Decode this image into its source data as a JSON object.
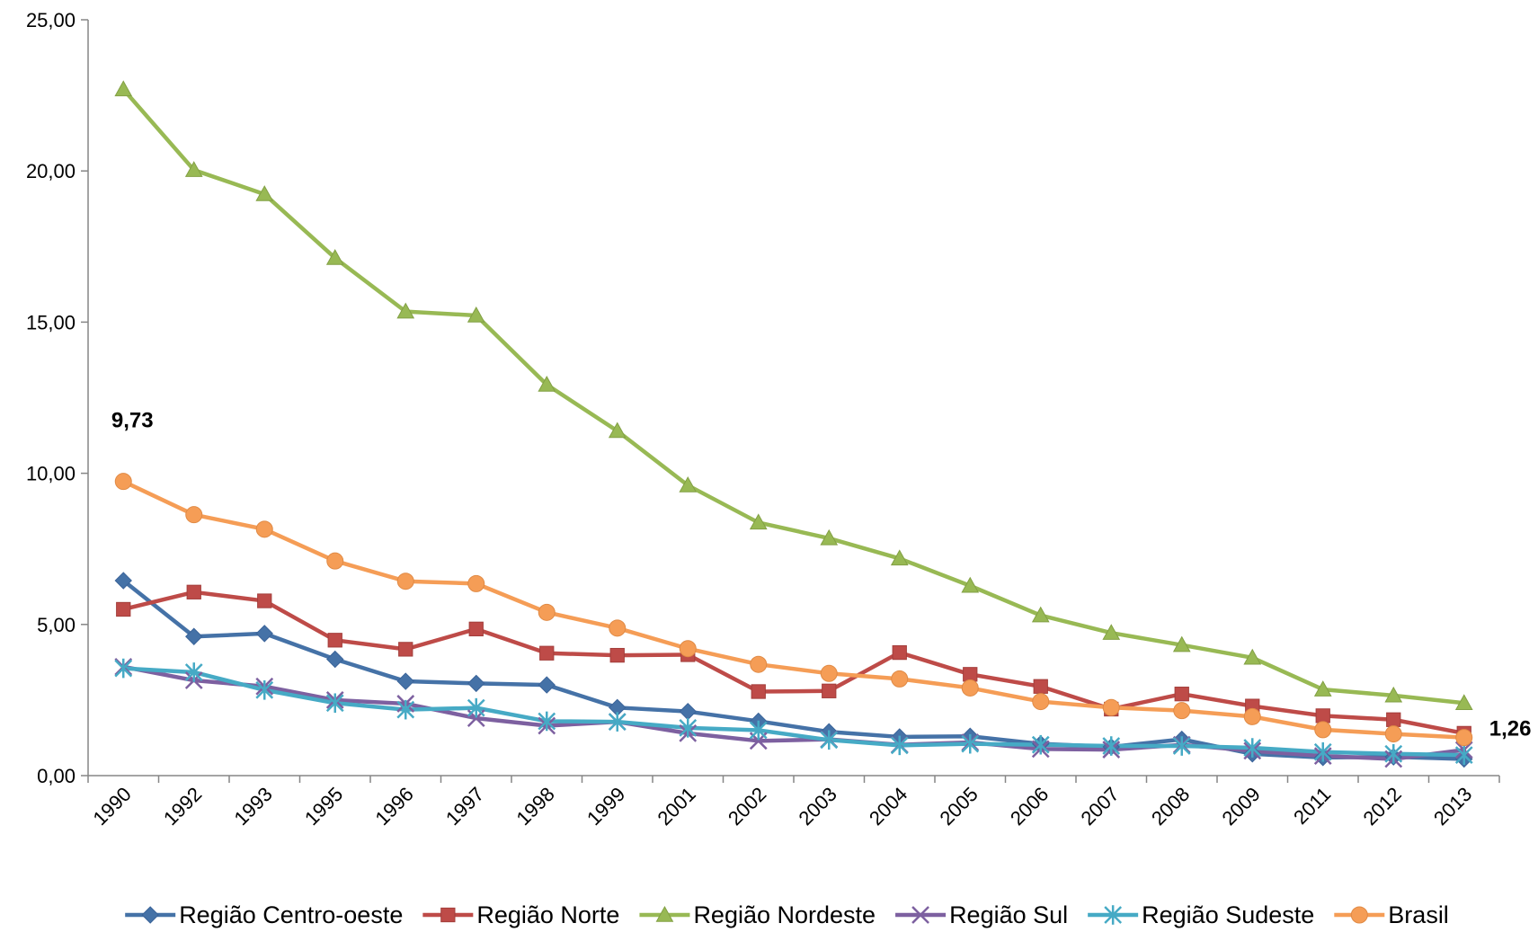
{
  "chart_data": {
    "type": "line",
    "title": "",
    "xlabel": "",
    "ylabel": "",
    "ylim": [
      0,
      25
    ],
    "yticks": [
      "0,00",
      "5,00",
      "10,00",
      "15,00",
      "20,00",
      "25,00"
    ],
    "ytick_values": [
      0,
      5,
      10,
      15,
      20,
      25
    ],
    "categories": [
      "1990",
      "1992",
      "1993",
      "1995",
      "1996",
      "1997",
      "1998",
      "1999",
      "2001",
      "2002",
      "2003",
      "2004",
      "2005",
      "2006",
      "2007",
      "2008",
      "2009",
      "2011",
      "2012",
      "2013"
    ],
    "grid": false,
    "legend_position": "bottom",
    "series": [
      {
        "name": "Região Centro-oeste",
        "color": "#4572A7",
        "marker": "diamond",
        "values": [
          6.45,
          4.6,
          4.7,
          3.85,
          3.12,
          3.05,
          3.0,
          2.25,
          2.12,
          1.8,
          1.45,
          1.28,
          1.3,
          1.05,
          0.95,
          1.2,
          0.72,
          0.6,
          0.62,
          0.55
        ]
      },
      {
        "name": "Região Norte",
        "color": "#BE4B48",
        "marker": "square",
        "values": [
          5.5,
          6.07,
          5.78,
          4.48,
          4.18,
          4.85,
          4.05,
          3.98,
          4.0,
          2.78,
          2.8,
          4.07,
          3.35,
          2.95,
          2.2,
          2.7,
          2.3,
          1.98,
          1.85,
          1.4
        ]
      },
      {
        "name": "Região Nordeste",
        "color": "#98B954",
        "marker": "triangle",
        "values": [
          22.7,
          20.03,
          19.23,
          17.12,
          15.35,
          15.22,
          12.93,
          11.4,
          9.6,
          8.37,
          7.85,
          7.18,
          6.28,
          5.3,
          4.72,
          4.32,
          3.9,
          2.85,
          2.65,
          2.4
        ]
      },
      {
        "name": "Região Sul",
        "color": "#7D60A0",
        "marker": "x",
        "values": [
          3.6,
          3.15,
          2.95,
          2.5,
          2.38,
          1.9,
          1.65,
          1.78,
          1.4,
          1.15,
          1.2,
          1.02,
          1.1,
          0.88,
          0.86,
          1.02,
          0.82,
          0.65,
          0.55,
          0.85
        ]
      },
      {
        "name": "Região Sudeste",
        "color": "#46AAC5",
        "marker": "star",
        "values": [
          3.55,
          3.42,
          2.83,
          2.4,
          2.18,
          2.24,
          1.8,
          1.78,
          1.58,
          1.5,
          1.18,
          1.0,
          1.05,
          1.02,
          0.98,
          0.98,
          0.92,
          0.78,
          0.72,
          0.68
        ]
      },
      {
        "name": "Brasil",
        "color": "#F59D56",
        "marker": "circle",
        "values": [
          9.73,
          8.63,
          8.15,
          7.1,
          6.43,
          6.35,
          5.4,
          4.88,
          4.2,
          3.68,
          3.38,
          3.2,
          2.9,
          2.45,
          2.25,
          2.15,
          1.95,
          1.52,
          1.38,
          1.26
        ]
      }
    ],
    "annotations": [
      {
        "text": "9,73",
        "series": "Brasil",
        "category": "1990",
        "position": "above"
      },
      {
        "text": "1,26",
        "series": "Brasil",
        "category": "2013",
        "position": "right"
      }
    ]
  }
}
